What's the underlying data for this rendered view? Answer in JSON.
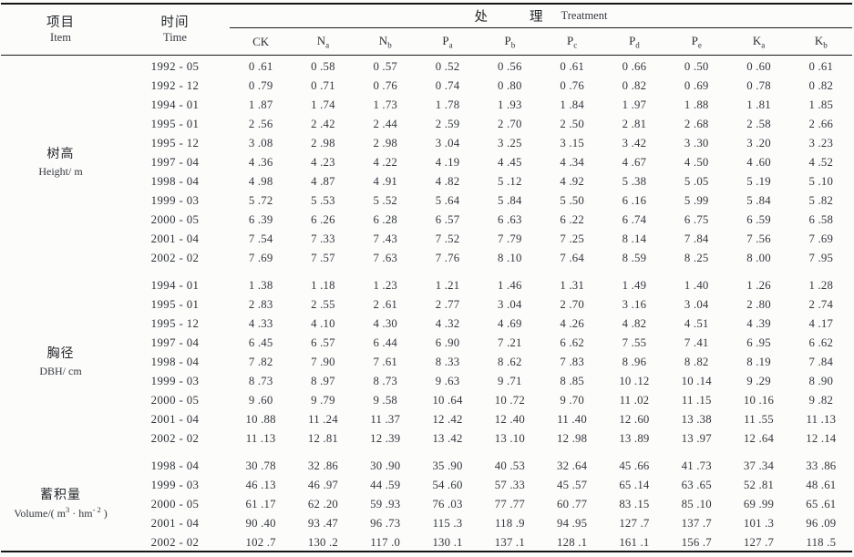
{
  "page": {
    "background": "#fcfcfb",
    "rule_color": "#141414",
    "text_color": "#33363d"
  },
  "header": {
    "item": {
      "zh": "项目",
      "en": "Item"
    },
    "time": {
      "zh": "时间",
      "en": "Time"
    },
    "treatment": {
      "zh_left": "处",
      "zh_right": "理",
      "en": "Treatment"
    },
    "columns": [
      {
        "base": "CK",
        "sub": ""
      },
      {
        "base": "N",
        "sub": "a"
      },
      {
        "base": "N",
        "sub": "b"
      },
      {
        "base": "P",
        "sub": "a"
      },
      {
        "base": "P",
        "sub": "b"
      },
      {
        "base": "P",
        "sub": "c"
      },
      {
        "base": "P",
        "sub": "d"
      },
      {
        "base": "P",
        "sub": "e"
      },
      {
        "base": "K",
        "sub": "a"
      },
      {
        "base": "K",
        "sub": "b"
      }
    ]
  },
  "sections": [
    {
      "label_zh": "树高",
      "label_en_parts": [
        {
          "text": "Height/ m"
        }
      ],
      "rows": [
        {
          "time": "1992 - 05",
          "values": [
            "0 .61",
            "0 .58",
            "0 .57",
            "0 .52",
            "0 .56",
            "0 .61",
            "0 .66",
            "0 .50",
            "0 .60",
            "0 .61"
          ]
        },
        {
          "time": "1992 - 12",
          "values": [
            "0 .79",
            "0 .71",
            "0 .76",
            "0 .74",
            "0 .80",
            "0 .76",
            "0 .82",
            "0 .69",
            "0 .78",
            "0 .82"
          ]
        },
        {
          "time": "1994 - 01",
          "values": [
            "1 .87",
            "1 .74",
            "1 .73",
            "1 .78",
            "1 .93",
            "1 .84",
            "1 .97",
            "1 .88",
            "1 .81",
            "1 .85"
          ]
        },
        {
          "time": "1995 - 01",
          "values": [
            "2 .56",
            "2 .42",
            "2 .44",
            "2 .59",
            "2 .70",
            "2 .50",
            "2 .81",
            "2 .68",
            "2 .58",
            "2 .66"
          ]
        },
        {
          "time": "1995 - 12",
          "values": [
            "3 .08",
            "2 .98",
            "2 .98",
            "3 .04",
            "3 .25",
            "3 .15",
            "3 .42",
            "3 .30",
            "3 .20",
            "3 .23"
          ]
        },
        {
          "time": "1997 - 04",
          "values": [
            "4 .36",
            "4 .23",
            "4 .22",
            "4 .19",
            "4 .45",
            "4 .34",
            "4 .67",
            "4 .50",
            "4 .60",
            "4 .52"
          ]
        },
        {
          "time": "1998 - 04",
          "values": [
            "4 .98",
            "4 .87",
            "4 .91",
            "4 .82",
            "5 .12",
            "4 .92",
            "5 .38",
            "5 .05",
            "5 .19",
            "5 .10"
          ]
        },
        {
          "time": "1999 - 03",
          "values": [
            "5 .72",
            "5 .53",
            "5 .52",
            "5 .64",
            "5 .84",
            "5 .50",
            "6 .16",
            "5 .99",
            "5 .84",
            "5 .82"
          ]
        },
        {
          "time": "2000 - 05",
          "values": [
            "6 .39",
            "6 .26",
            "6 .28",
            "6 .57",
            "6 .63",
            "6 .22",
            "6 .74",
            "6 .75",
            "6 .59",
            "6 .58"
          ]
        },
        {
          "time": "2001 - 04",
          "values": [
            "7 .54",
            "7 .33",
            "7 .43",
            "7 .52",
            "7 .79",
            "7 .25",
            "8 .14",
            "7 .84",
            "7 .56",
            "7 .69"
          ]
        },
        {
          "time": "2002 - 02",
          "values": [
            "7 .69",
            "7 .57",
            "7 .63",
            "7 .76",
            "8 .10",
            "7 .64",
            "8 .59",
            "8 .25",
            "8 .00",
            "7 .95"
          ]
        }
      ]
    },
    {
      "label_zh": "胸径",
      "label_en_parts": [
        {
          "text": "DBH/ cm"
        }
      ],
      "rows": [
        {
          "time": "1994 - 01",
          "values": [
            "1 .38",
            "1 .18",
            "1 .23",
            "1 .21",
            "1 .46",
            "1 .31",
            "1 .49",
            "1 .40",
            "1 .26",
            "1 .28"
          ]
        },
        {
          "time": "1995 - 01",
          "values": [
            "2 .83",
            "2 .55",
            "2 .61",
            "2 .77",
            "3 .04",
            "2 .70",
            "3 .16",
            "3 .04",
            "2 .80",
            "2 .74"
          ]
        },
        {
          "time": "1995 - 12",
          "values": [
            "4 .33",
            "4 .10",
            "4 .30",
            "4 .32",
            "4 .69",
            "4 .26",
            "4 .82",
            "4 .51",
            "4 .39",
            "4 .17"
          ]
        },
        {
          "time": "1997 - 04",
          "values": [
            "6 .45",
            "6 .57",
            "6 .44",
            "6 .90",
            "7 .21",
            "6 .62",
            "7 .55",
            "7 .41",
            "6 .95",
            "6 .62"
          ]
        },
        {
          "time": "1998 - 04",
          "values": [
            "7 .82",
            "7 .90",
            "7 .61",
            "8 .33",
            "8 .62",
            "7 .83",
            "8 .96",
            "8 .82",
            "8 .19",
            "7 .84"
          ]
        },
        {
          "time": "1999 - 03",
          "values": [
            "8 .73",
            "8 .97",
            "8 .73",
            "9 .63",
            "9 .71",
            "8 .85",
            "10 .12",
            "10 .14",
            "9 .29",
            "8 .90"
          ]
        },
        {
          "time": "2000 - 05",
          "values": [
            "9 .60",
            "9 .79",
            "9 .58",
            "10 .64",
            "10 .72",
            "9 .70",
            "11 .02",
            "11 .15",
            "10 .16",
            "9 .82"
          ]
        },
        {
          "time": "2001 - 04",
          "values": [
            "10 .88",
            "11 .24",
            "11 .37",
            "12 .42",
            "12 .40",
            "11 .40",
            "12 .60",
            "13 .38",
            "11 .55",
            "11 .13"
          ]
        },
        {
          "time": "2002 - 02",
          "values": [
            "11 .13",
            "12 .81",
            "12 .39",
            "13 .42",
            "13 .10",
            "12 .98",
            "13 .89",
            "13 .97",
            "12 .64",
            "12 .14"
          ]
        }
      ]
    },
    {
      "label_zh": "蓄积量",
      "label_en_parts": [
        {
          "text": "Volume/( m"
        },
        {
          "text": "3",
          "sup": true
        },
        {
          "text": " · hm"
        },
        {
          "text": "- 2",
          "sup": true
        },
        {
          "text": " )"
        }
      ],
      "rows": [
        {
          "time": "1998 - 04",
          "values": [
            "30 .78",
            "32 .86",
            "30 .90",
            "35 .90",
            "40 .53",
            "32 .64",
            "45 .66",
            "41 .73",
            "37 .34",
            "33 .86"
          ]
        },
        {
          "time": "1999 - 03",
          "values": [
            "46 .13",
            "46 .97",
            "44 .59",
            "54 .60",
            "57 .33",
            "45 .57",
            "65 .14",
            "63 .65",
            "52 .81",
            "48 .61"
          ]
        },
        {
          "time": "2000 - 05",
          "values": [
            "61 .17",
            "62 .20",
            "59 .93",
            "76 .03",
            "77 .77",
            "60 .77",
            "83 .15",
            "85 .10",
            "69 .99",
            "65 .61"
          ]
        },
        {
          "time": "2001 - 04",
          "values": [
            "90 .40",
            "93 .47",
            "96 .73",
            "115 .3",
            "118 .9",
            "94 .95",
            "127 .7",
            "137 .7",
            "101 .3",
            "96 .09"
          ]
        },
        {
          "time": "2002 - 02",
          "values": [
            "102 .7",
            "130 .2",
            "117 .0",
            "130 .1",
            "137 .1",
            "128 .1",
            "161 .1",
            "156 .7",
            "127 .7",
            "118 .5"
          ]
        }
      ]
    }
  ]
}
